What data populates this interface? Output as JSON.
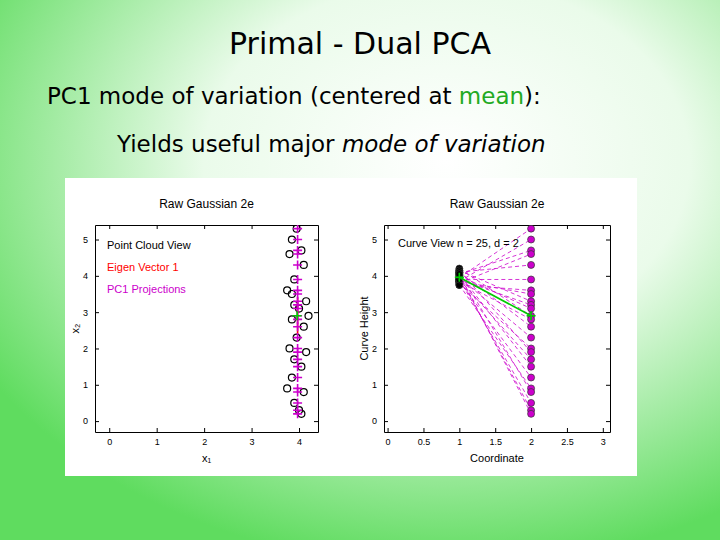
{
  "slide": {
    "title": "Primal - Dual PCA",
    "subtitle": [
      [
        "PC1 mode of variation (centered at ",
        "mean",
        "):"
      ],
      [
        "Yields useful major ",
        "mode of variation"
      ]
    ]
  },
  "chart_data": [
    {
      "type": "scatter",
      "title": "Raw Gaussian 2e",
      "x_label": "x₁",
      "y_label": "x₂",
      "xlim": [
        -0.3,
        4.4
      ],
      "xticks": [
        0,
        1,
        2,
        3,
        4
      ],
      "ylim": [
        -0.3,
        5.4
      ],
      "yticks": [
        0,
        1,
        2,
        3,
        4,
        5
      ],
      "legend": "upper left",
      "series": [
        {
          "name": "Point Cloud View",
          "color": "#000000",
          "marker": "circle",
          "x": [
            3.95,
            3.85,
            4.05,
            3.8,
            4.1,
            3.9,
            3.75,
            3.85,
            4.15,
            3.9,
            4.0,
            4.2,
            3.85,
            4.1,
            3.95,
            3.8,
            4.15,
            3.9,
            4.05,
            3.85,
            3.75,
            4.1,
            3.9,
            4.0,
            4.05
          ],
          "values": [
            5.3,
            5.0,
            4.7,
            4.6,
            4.3,
            3.9,
            3.6,
            3.5,
            3.3,
            3.2,
            3.1,
            2.9,
            2.8,
            2.6,
            2.3,
            2.0,
            1.9,
            1.7,
            1.5,
            1.2,
            0.9,
            0.8,
            0.5,
            0.3,
            0.2
          ]
        },
        {
          "name": "Eigen Vector 1",
          "color": "#ff0000",
          "type": "line",
          "x": [
            3.97,
            3.97
          ],
          "values": [
            2.4,
            3.4
          ]
        },
        {
          "name": "PC1 Projections",
          "color": "#cc00cc",
          "marker": "plus",
          "x": [
            3.97,
            3.97,
            3.97,
            3.97,
            3.97,
            3.97,
            3.97,
            3.97,
            3.97,
            3.97,
            3.97,
            3.97,
            3.97,
            3.97,
            3.97,
            3.97,
            3.97,
            3.97,
            3.97,
            3.97,
            3.97,
            3.97,
            3.97,
            3.97,
            3.97
          ],
          "values": [
            5.3,
            5.0,
            4.7,
            4.6,
            4.3,
            3.9,
            3.6,
            3.5,
            3.3,
            3.2,
            3.1,
            2.9,
            2.8,
            2.6,
            2.3,
            2.0,
            1.9,
            1.7,
            1.5,
            1.2,
            0.9,
            0.8,
            0.5,
            0.3,
            0.2
          ]
        },
        {
          "color": "#00cc00",
          "marker": "plus",
          "x": [
            3.96
          ],
          "values": [
            2.9
          ]
        }
      ]
    },
    {
      "type": "line",
      "title": "Raw Gaussian 2e",
      "x_label": "Coordinate",
      "y_label": "Curve Height",
      "annotations": [
        "Curve View n = 25, d = 2"
      ],
      "x": [
        1,
        2
      ],
      "xlim": [
        -0.05,
        3.1
      ],
      "xticks": [
        0,
        0.5,
        1,
        1.5,
        2,
        2.5,
        3
      ],
      "ylim": [
        -0.3,
        5.4
      ],
      "yticks": [
        0,
        1,
        2,
        3,
        4,
        5
      ],
      "series": [
        {
          "color": "#cc00cc",
          "colors": [
            "#000000",
            "#cc00cc"
          ],
          "line_style": "dashed",
          "marker": "circle",
          "values": [
            3.95,
            5.3
          ]
        },
        {
          "color": "#cc00cc",
          "colors": [
            "#000000",
            "#cc00cc"
          ],
          "line_style": "dashed",
          "marker": "circle",
          "values": [
            3.85,
            5.0
          ]
        },
        {
          "color": "#cc00cc",
          "colors": [
            "#000000",
            "#cc00cc"
          ],
          "line_style": "dashed",
          "marker": "circle",
          "values": [
            4.05,
            4.7
          ]
        },
        {
          "color": "#cc00cc",
          "colors": [
            "#000000",
            "#cc00cc"
          ],
          "line_style": "dashed",
          "marker": "circle",
          "values": [
            3.8,
            4.6
          ]
        },
        {
          "color": "#cc00cc",
          "colors": [
            "#000000",
            "#cc00cc"
          ],
          "line_style": "dashed",
          "marker": "circle",
          "values": [
            4.1,
            4.3
          ]
        },
        {
          "color": "#cc00cc",
          "colors": [
            "#000000",
            "#cc00cc"
          ],
          "line_style": "dashed",
          "marker": "circle",
          "values": [
            3.9,
            3.9
          ]
        },
        {
          "color": "#cc00cc",
          "colors": [
            "#000000",
            "#cc00cc"
          ],
          "line_style": "dashed",
          "marker": "circle",
          "values": [
            3.75,
            3.6
          ]
        },
        {
          "color": "#cc00cc",
          "colors": [
            "#000000",
            "#cc00cc"
          ],
          "line_style": "dashed",
          "marker": "circle",
          "values": [
            3.85,
            3.5
          ]
        },
        {
          "color": "#cc00cc",
          "colors": [
            "#000000",
            "#cc00cc"
          ],
          "line_style": "dashed",
          "marker": "circle",
          "values": [
            4.15,
            3.3
          ]
        },
        {
          "color": "#cc00cc",
          "colors": [
            "#000000",
            "#cc00cc"
          ],
          "line_style": "dashed",
          "marker": "circle",
          "values": [
            3.9,
            3.2
          ]
        },
        {
          "color": "#cc00cc",
          "colors": [
            "#000000",
            "#cc00cc"
          ],
          "line_style": "dashed",
          "marker": "circle",
          "values": [
            4.0,
            3.1
          ]
        },
        {
          "color": "#cc00cc",
          "colors": [
            "#000000",
            "#cc00cc"
          ],
          "line_style": "dashed",
          "marker": "circle",
          "values": [
            4.2,
            2.9
          ]
        },
        {
          "color": "#cc00cc",
          "colors": [
            "#000000",
            "#cc00cc"
          ],
          "line_style": "dashed",
          "marker": "circle",
          "values": [
            3.85,
            2.8
          ]
        },
        {
          "color": "#cc00cc",
          "colors": [
            "#000000",
            "#cc00cc"
          ],
          "line_style": "dashed",
          "marker": "circle",
          "values": [
            4.1,
            2.6
          ]
        },
        {
          "color": "#cc00cc",
          "colors": [
            "#000000",
            "#cc00cc"
          ],
          "line_style": "dashed",
          "marker": "circle",
          "values": [
            3.95,
            2.3
          ]
        },
        {
          "color": "#cc00cc",
          "colors": [
            "#000000",
            "#cc00cc"
          ],
          "line_style": "dashed",
          "marker": "circle",
          "values": [
            3.8,
            2.0
          ]
        },
        {
          "color": "#cc00cc",
          "colors": [
            "#000000",
            "#cc00cc"
          ],
          "line_style": "dashed",
          "marker": "circle",
          "values": [
            4.15,
            1.9
          ]
        },
        {
          "color": "#cc00cc",
          "colors": [
            "#000000",
            "#cc00cc"
          ],
          "line_style": "dashed",
          "marker": "circle",
          "values": [
            3.9,
            1.7
          ]
        },
        {
          "color": "#cc00cc",
          "colors": [
            "#000000",
            "#cc00cc"
          ],
          "line_style": "dashed",
          "marker": "circle",
          "values": [
            4.05,
            1.5
          ]
        },
        {
          "color": "#cc00cc",
          "colors": [
            "#000000",
            "#cc00cc"
          ],
          "line_style": "dashed",
          "marker": "circle",
          "values": [
            3.85,
            1.2
          ]
        },
        {
          "color": "#cc00cc",
          "colors": [
            "#000000",
            "#cc00cc"
          ],
          "line_style": "dashed",
          "marker": "circle",
          "values": [
            3.75,
            0.9
          ]
        },
        {
          "color": "#cc00cc",
          "colors": [
            "#000000",
            "#cc00cc"
          ],
          "line_style": "dashed",
          "marker": "circle",
          "values": [
            4.1,
            0.8
          ]
        },
        {
          "color": "#cc00cc",
          "colors": [
            "#000000",
            "#cc00cc"
          ],
          "line_style": "dashed",
          "marker": "circle",
          "values": [
            3.9,
            0.5
          ]
        },
        {
          "color": "#cc00cc",
          "colors": [
            "#000000",
            "#cc00cc"
          ],
          "line_style": "dashed",
          "marker": "circle",
          "values": [
            4.0,
            0.3
          ]
        },
        {
          "color": "#cc00cc",
          "colors": [
            "#000000",
            "#cc00cc"
          ],
          "line_style": "dashed",
          "marker": "circle",
          "values": [
            4.05,
            0.2
          ]
        },
        {
          "color": "#00cc00",
          "colors": [
            "#00cc00",
            "#00cc00"
          ],
          "line_style": "solid",
          "marker": "plus",
          "values": [
            3.96,
            2.9
          ]
        }
      ]
    }
  ]
}
